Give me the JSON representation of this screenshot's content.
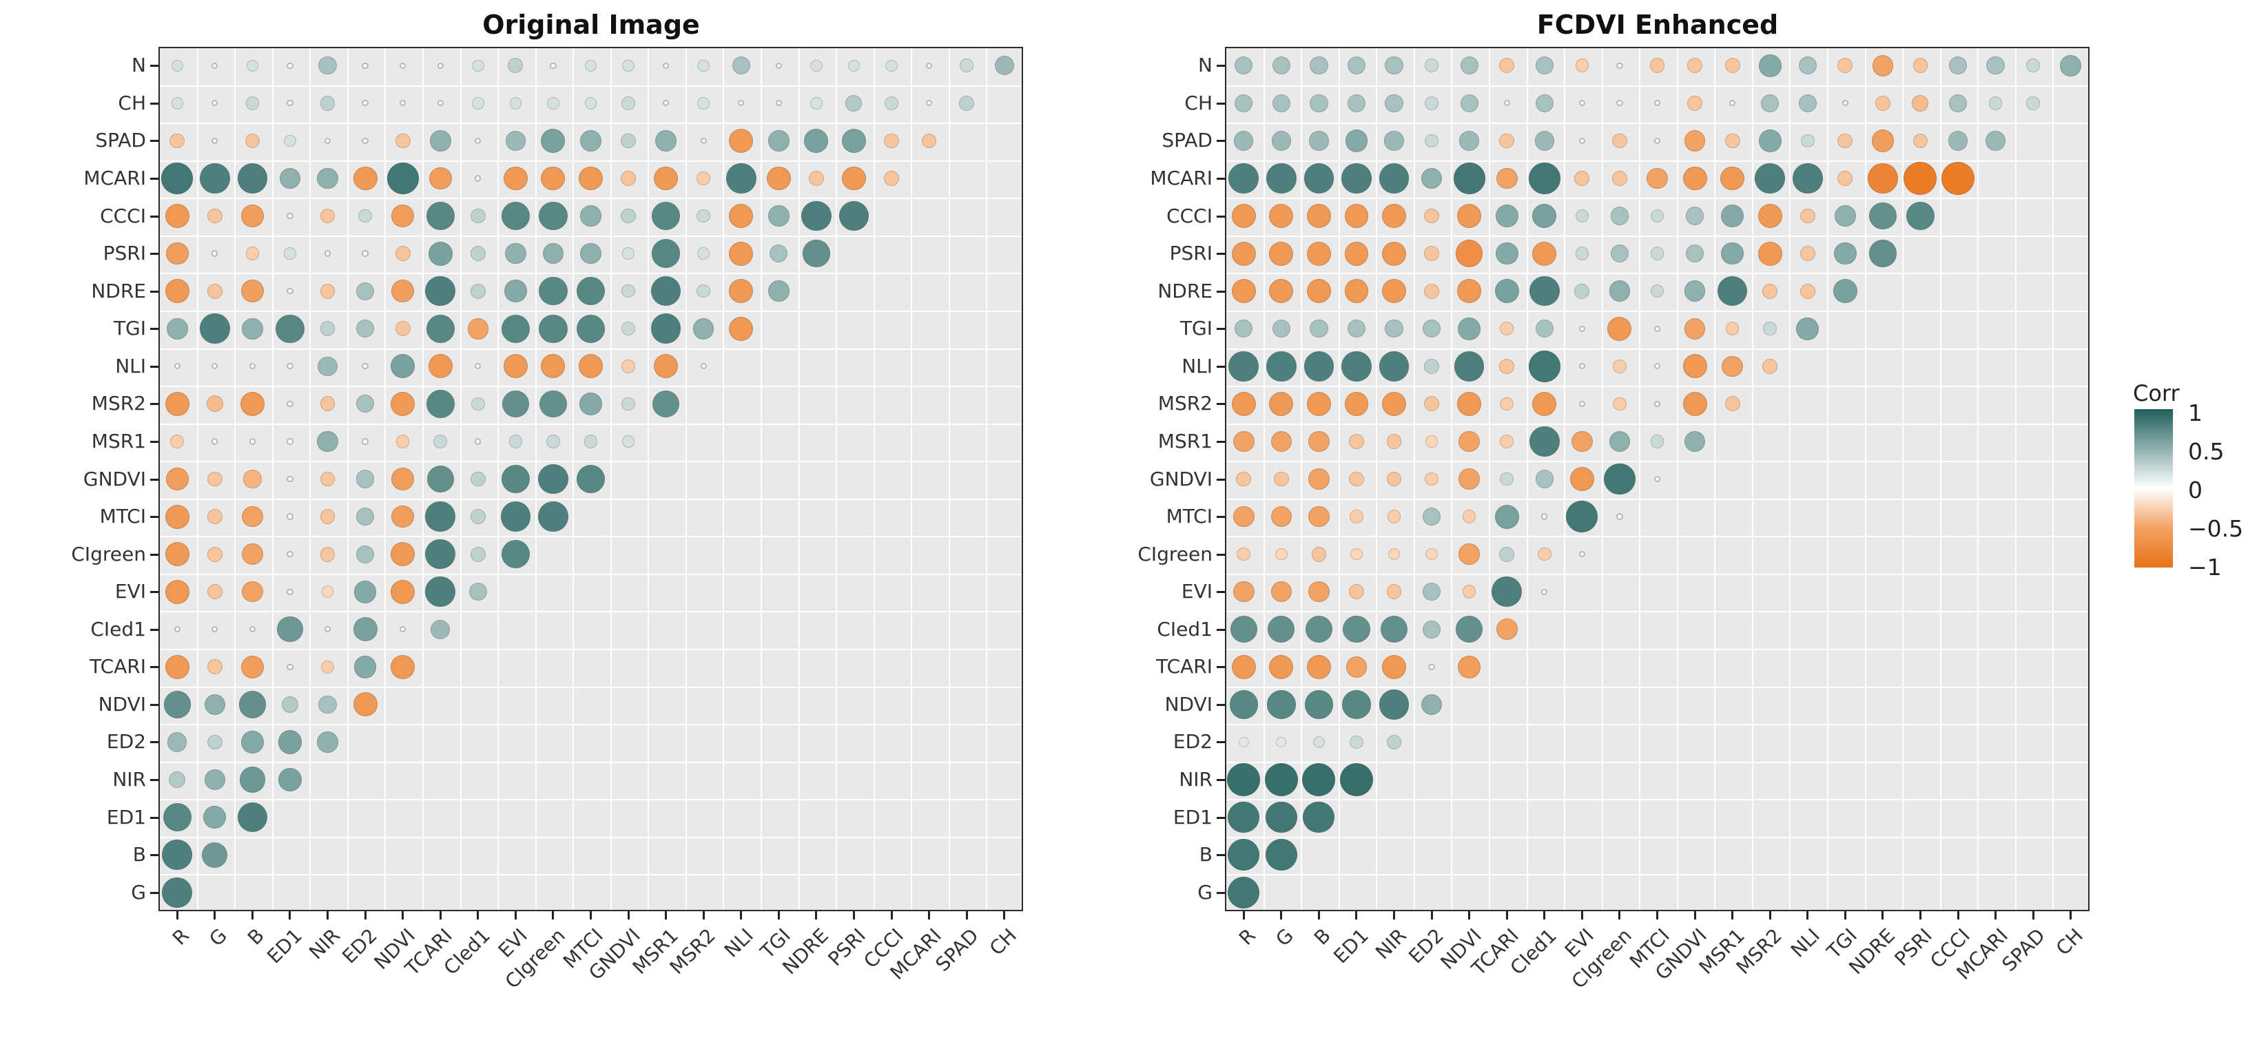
{
  "page": {
    "background": "#ffffff"
  },
  "legend": {
    "title": "Corr",
    "ticks": [
      "1",
      "0.5",
      "0",
      "−0.5",
      "−1"
    ],
    "color_positive": "#215f5a",
    "color_mid": "#ffffff",
    "color_negative": "#e87318"
  },
  "chart_data": [
    {
      "type": "heatmap",
      "subtype": "correlogram-upper-triangle-circles",
      "title": "Original Image",
      "legend_title": "Corr",
      "value_range": [
        -1,
        1
      ],
      "x_labels": [
        "R",
        "G",
        "B",
        "ED1",
        "NIR",
        "ED2",
        "NDVI",
        "TCARI",
        "CIed1",
        "EVI",
        "CIgreen",
        "MTCI",
        "GNDVI",
        "MSR1",
        "MSR2",
        "NLI",
        "TGI",
        "NDRE",
        "PSRI",
        "CCCI",
        "MCARI",
        "SPAD",
        "CH"
      ],
      "y_labels": [
        "N",
        "CH",
        "SPAD",
        "MCARI",
        "CCCI",
        "PSRI",
        "NDRE",
        "TGI",
        "NLI",
        "MSR2",
        "MSR1",
        "GNDVI",
        "MTCI",
        "CIgreen",
        "EVI",
        "CIed1",
        "TCARI",
        "NDVI",
        "ED2",
        "NIR",
        "ED1",
        "B",
        "G"
      ],
      "series": [
        {
          "label": "N",
          "values": [
            0.2,
            0,
            0.2,
            0,
            0.4,
            0,
            0,
            0,
            0.2,
            0.3,
            0,
            0.2,
            0.2,
            0,
            0.2,
            0.4,
            0,
            0.2,
            0.2,
            0.2,
            0,
            0.25,
            0.45
          ]
        },
        {
          "label": "CH",
          "values": [
            0.2,
            0,
            0.25,
            0,
            0.3,
            0,
            0,
            0,
            0.2,
            0.2,
            0.2,
            0.2,
            0.25,
            0,
            0.2,
            0,
            0,
            0.2,
            0.35,
            0.25,
            0,
            0.3
          ]
        },
        {
          "label": "SPAD",
          "values": [
            -0.3,
            0,
            -0.3,
            0.2,
            0,
            0,
            -0.3,
            0.5,
            0,
            0.45,
            0.6,
            0.5,
            0.3,
            0.5,
            0,
            -0.6,
            0.5,
            0.6,
            0.6,
            -0.3,
            -0.3
          ]
        },
        {
          "label": "MCARI",
          "values": [
            0.85,
            0.8,
            0.8,
            0.5,
            0.5,
            -0.6,
            0.85,
            -0.55,
            0,
            -0.6,
            -0.6,
            -0.6,
            -0.3,
            -0.6,
            -0.25,
            0.8,
            -0.6,
            -0.3,
            -0.6,
            -0.3
          ]
        },
        {
          "label": "CCCI",
          "values": [
            -0.6,
            -0.3,
            -0.55,
            0,
            -0.3,
            0.25,
            -0.55,
            0.75,
            0.3,
            0.75,
            0.75,
            0.5,
            0.3,
            0.75,
            0.25,
            -0.6,
            0.5,
            0.8,
            0.8
          ]
        },
        {
          "label": "PSRI",
          "values": [
            -0.55,
            0,
            -0.25,
            0.2,
            0,
            0,
            -0.3,
            0.6,
            0.3,
            0.5,
            0.5,
            0.5,
            0.2,
            0.75,
            0.2,
            -0.6,
            0.4,
            0.7
          ]
        },
        {
          "label": "NDRE",
          "values": [
            -0.6,
            -0.3,
            -0.55,
            0,
            -0.3,
            0.4,
            -0.55,
            0.8,
            0.3,
            0.55,
            0.75,
            0.75,
            0.25,
            0.8,
            0.25,
            -0.6,
            0.5
          ]
        },
        {
          "label": "TGI",
          "values": [
            0.5,
            0.8,
            0.5,
            0.75,
            0.3,
            0.4,
            -0.3,
            0.75,
            -0.5,
            0.75,
            0.75,
            0.75,
            0.25,
            0.8,
            0.5,
            -0.6
          ]
        },
        {
          "label": "NLI",
          "values": [
            0,
            0,
            0,
            0,
            0.45,
            0,
            0.6,
            -0.6,
            0,
            -0.6,
            -0.6,
            -0.6,
            -0.25,
            -0.6,
            0
          ]
        },
        {
          "label": "MSR2",
          "values": [
            -0.6,
            -0.35,
            -0.6,
            0,
            -0.3,
            0.4,
            -0.6,
            0.75,
            0.25,
            0.7,
            0.7,
            0.55,
            0.25,
            0.7
          ]
        },
        {
          "label": "MSR1",
          "values": [
            -0.25,
            0,
            0,
            0,
            0.5,
            0,
            -0.25,
            0.25,
            0,
            0.25,
            0.25,
            0.25,
            0.2
          ]
        },
        {
          "label": "GNDVI",
          "values": [
            -0.55,
            -0.3,
            -0.4,
            0,
            -0.3,
            0.4,
            -0.55,
            0.7,
            0.3,
            0.75,
            0.8,
            0.75
          ]
        },
        {
          "label": "MTCI",
          "values": [
            -0.6,
            -0.3,
            -0.5,
            0,
            -0.3,
            0.4,
            -0.55,
            0.8,
            0.3,
            0.8,
            0.8
          ]
        },
        {
          "label": "CIgreen",
          "values": [
            -0.6,
            -0.3,
            -0.5,
            0,
            -0.3,
            0.4,
            -0.6,
            0.8,
            0.3,
            0.75
          ]
        },
        {
          "label": "EVI",
          "values": [
            -0.6,
            -0.3,
            -0.5,
            0,
            -0.2,
            0.55,
            -0.6,
            0.8,
            0.4
          ]
        },
        {
          "label": "CIed1",
          "values": [
            0,
            0,
            0,
            0.65,
            0,
            0.6,
            0,
            0.45
          ]
        },
        {
          "label": "TCARI",
          "values": [
            -0.6,
            -0.3,
            -0.55,
            0,
            -0.25,
            0.55,
            -0.6
          ]
        },
        {
          "label": "NDVI",
          "values": [
            0.7,
            0.5,
            0.7,
            0.35,
            0.4,
            -0.6
          ]
        },
        {
          "label": "ED2",
          "values": [
            0.45,
            0.3,
            0.55,
            0.6,
            0.5
          ]
        },
        {
          "label": "NIR",
          "values": [
            0.35,
            0.5,
            0.65,
            0.6
          ]
        },
        {
          "label": "ED1",
          "values": [
            0.75,
            0.55,
            0.8
          ]
        },
        {
          "label": "B",
          "values": [
            0.8,
            0.65
          ]
        },
        {
          "label": "G",
          "values": [
            0.8
          ]
        }
      ]
    },
    {
      "type": "heatmap",
      "subtype": "correlogram-upper-triangle-circles",
      "title": "FCDVI Enhanced",
      "legend_title": "Corr",
      "value_range": [
        -1,
        1
      ],
      "x_labels": [
        "R",
        "G",
        "B",
        "ED1",
        "NIR",
        "ED2",
        "NDVI",
        "TCARI",
        "CIed1",
        "EVI",
        "CIgreen",
        "MTCI",
        "GNDVI",
        "MSR1",
        "MSR2",
        "NLI",
        "TGI",
        "NDRE",
        "PSRI",
        "CCCI",
        "MCARI",
        "SPAD",
        "CH"
      ],
      "y_labels": [
        "N",
        "CH",
        "SPAD",
        "MCARI",
        "CCCI",
        "PSRI",
        "NDRE",
        "TGI",
        "NLI",
        "MSR2",
        "MSR1",
        "GNDVI",
        "MTCI",
        "CIgreen",
        "EVI",
        "CIed1",
        "TCARI",
        "NDVI",
        "ED2",
        "NIR",
        "ED1",
        "B",
        "G"
      ],
      "series": [
        {
          "label": "N",
          "values": [
            0.4,
            0.4,
            0.4,
            0.4,
            0.4,
            0.25,
            0.4,
            -0.3,
            0.4,
            -0.25,
            0,
            -0.3,
            -0.3,
            -0.3,
            0.55,
            0.4,
            -0.3,
            -0.5,
            -0.3,
            0.4,
            0.4,
            0.25,
            0.5
          ]
        },
        {
          "label": "CH",
          "values": [
            0.4,
            0.4,
            0.4,
            0.4,
            0.4,
            0.25,
            0.4,
            0,
            0.4,
            0,
            0,
            0,
            -0.3,
            0,
            0.4,
            0.4,
            0,
            -0.3,
            -0.35,
            0.4,
            0.25,
            0.25
          ]
        },
        {
          "label": "SPAD",
          "values": [
            0.45,
            0.45,
            0.45,
            0.55,
            0.45,
            0.25,
            0.45,
            -0.3,
            0.45,
            0,
            -0.3,
            0,
            -0.5,
            -0.3,
            0.55,
            0.25,
            -0.3,
            -0.55,
            -0.3,
            0.45,
            0.45
          ]
        },
        {
          "label": "MCARI",
          "values": [
            0.8,
            0.8,
            0.8,
            0.8,
            0.8,
            0.5,
            0.85,
            -0.5,
            0.85,
            -0.3,
            -0.3,
            -0.5,
            -0.6,
            -0.6,
            0.8,
            0.8,
            -0.3,
            -0.8,
            -0.9,
            -0.9
          ]
        },
        {
          "label": "CCCI",
          "values": [
            -0.6,
            -0.6,
            -0.6,
            -0.6,
            -0.6,
            -0.3,
            -0.6,
            0.55,
            0.6,
            0.25,
            0.4,
            0.25,
            0.4,
            0.55,
            -0.6,
            -0.3,
            0.5,
            0.7,
            0.75
          ]
        },
        {
          "label": "PSRI",
          "values": [
            -0.6,
            -0.6,
            -0.6,
            -0.6,
            -0.6,
            -0.3,
            -0.7,
            0.55,
            -0.6,
            0.25,
            0.4,
            0.25,
            0.4,
            0.55,
            -0.6,
            -0.3,
            0.55,
            0.7
          ]
        },
        {
          "label": "NDRE",
          "values": [
            -0.6,
            -0.6,
            -0.6,
            -0.6,
            -0.6,
            -0.3,
            -0.6,
            0.6,
            0.8,
            0.3,
            0.5,
            0.25,
            0.5,
            0.8,
            -0.3,
            -0.3,
            0.6
          ]
        },
        {
          "label": "TGI",
          "values": [
            0.4,
            0.4,
            0.4,
            0.4,
            0.4,
            0.4,
            0.55,
            -0.25,
            0.4,
            0,
            -0.6,
            0,
            -0.5,
            -0.25,
            0.25,
            0.55
          ]
        },
        {
          "label": "NLI",
          "values": [
            0.8,
            0.8,
            0.8,
            0.8,
            0.8,
            0.3,
            0.8,
            -0.3,
            0.85,
            0,
            -0.25,
            0,
            -0.6,
            -0.5,
            -0.3
          ]
        },
        {
          "label": "MSR2",
          "values": [
            -0.6,
            -0.6,
            -0.6,
            -0.6,
            -0.6,
            -0.3,
            -0.6,
            -0.25,
            -0.6,
            0,
            -0.25,
            0,
            -0.6,
            -0.3
          ]
        },
        {
          "label": "MSR1",
          "values": [
            -0.5,
            -0.5,
            -0.5,
            -0.3,
            -0.3,
            -0.2,
            -0.5,
            -0.25,
            0.8,
            -0.5,
            0.5,
            0.25,
            0.5
          ]
        },
        {
          "label": "GNDVI",
          "values": [
            -0.3,
            -0.3,
            -0.5,
            -0.3,
            -0.3,
            -0.25,
            -0.5,
            0.25,
            0.4,
            -0.6,
            0.85,
            0
          ]
        },
        {
          "label": "MTCI",
          "values": [
            -0.5,
            -0.5,
            -0.5,
            -0.25,
            -0.25,
            0.4,
            -0.25,
            0.6,
            0,
            0.85,
            0
          ]
        },
        {
          "label": "CIgreen",
          "values": [
            -0.25,
            -0.2,
            -0.3,
            -0.2,
            -0.2,
            -0.2,
            -0.5,
            0.3,
            -0.25,
            0
          ]
        },
        {
          "label": "EVI",
          "values": [
            -0.5,
            -0.5,
            -0.5,
            -0.3,
            -0.3,
            0.4,
            -0.25,
            0.8,
            0
          ]
        },
        {
          "label": "CIed1",
          "values": [
            0.7,
            0.7,
            0.7,
            0.7,
            0.7,
            0.4,
            0.7,
            -0.5
          ]
        },
        {
          "label": "TCARI",
          "values": [
            -0.6,
            -0.6,
            -0.6,
            -0.5,
            -0.6,
            0,
            -0.55
          ]
        },
        {
          "label": "NDVI",
          "values": [
            0.75,
            0.75,
            0.75,
            0.75,
            0.8,
            0.5
          ]
        },
        {
          "label": "ED2",
          "values": [
            0.15,
            0.15,
            0.2,
            0.25,
            0.3
          ]
        },
        {
          "label": "NIR",
          "values": [
            0.9,
            0.9,
            0.9,
            0.9
          ]
        },
        {
          "label": "ED1",
          "values": [
            0.85,
            0.85,
            0.85
          ]
        },
        {
          "label": "B",
          "values": [
            0.85,
            0.85
          ]
        },
        {
          "label": "G",
          "values": [
            0.85
          ]
        }
      ]
    }
  ]
}
